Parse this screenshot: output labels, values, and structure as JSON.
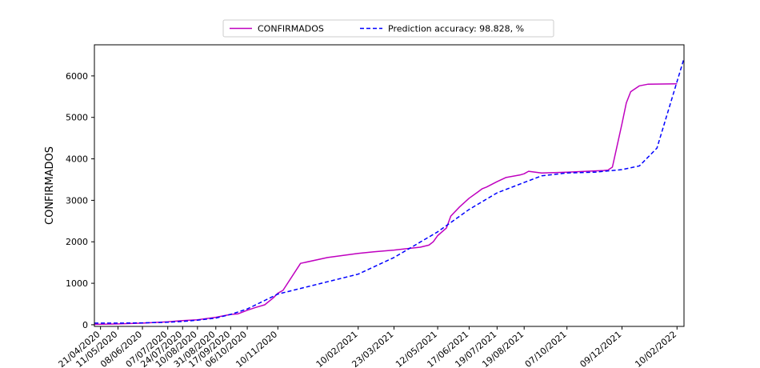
{
  "chart_data": {
    "type": "line",
    "title": "",
    "xlabel": "",
    "ylabel": "CONFIRMADOS",
    "ylim": [
      -40,
      6750
    ],
    "xlim": [
      "2020-04-14",
      "2022-02-18"
    ],
    "grid": false,
    "legend_position": "top-center",
    "x_tick_labels": [
      "21/04/2020",
      "11/05/2020",
      "08/06/2020",
      "07/07/2020",
      "24/07/2020",
      "10/08/2020",
      "31/08/2020",
      "17/09/2020",
      "06/10/2020",
      "10/11/2020",
      "10/02/2021",
      "23/03/2021",
      "12/05/2021",
      "17/06/2021",
      "19/07/2021",
      "19/08/2021",
      "07/10/2021",
      "09/12/2021",
      "10/02/2022"
    ],
    "y_ticks": [
      0,
      1000,
      2000,
      3000,
      4000,
      5000,
      6000
    ],
    "series": [
      {
        "name": "CONFIRMADOS",
        "color": "#bf00bf",
        "style": "solid",
        "x": [
          "2020-04-14",
          "2020-05-11",
          "2020-06-08",
          "2020-07-07",
          "2020-07-24",
          "2020-08-10",
          "2020-08-31",
          "2020-09-17",
          "2020-09-25",
          "2020-10-06",
          "2020-10-16",
          "2020-10-26",
          "2020-11-05",
          "2020-11-10",
          "2020-11-16",
          "2020-12-06",
          "2021-01-06",
          "2021-02-10",
          "2021-02-28",
          "2021-03-23",
          "2021-04-22",
          "2021-05-02",
          "2021-05-07",
          "2021-05-12",
          "2021-05-22",
          "2021-05-27",
          "2021-06-06",
          "2021-06-17",
          "2021-06-27",
          "2021-07-02",
          "2021-07-07",
          "2021-07-19",
          "2021-07-29",
          "2021-08-14",
          "2021-08-19",
          "2021-08-24",
          "2021-09-08",
          "2021-10-07",
          "2021-11-08",
          "2021-11-18",
          "2021-11-23",
          "2021-11-28",
          "2021-12-09",
          "2021-12-14",
          "2021-12-19",
          "2021-12-29",
          "2022-01-08",
          "2022-02-10"
        ],
        "values": [
          10,
          20,
          40,
          70,
          100,
          120,
          180,
          250,
          260,
          350,
          420,
          480,
          650,
          760,
          830,
          1480,
          1620,
          1720,
          1760,
          1800,
          1870,
          1920,
          2000,
          2150,
          2330,
          2620,
          2840,
          3050,
          3200,
          3280,
          3320,
          3450,
          3550,
          3610,
          3640,
          3700,
          3660,
          3680,
          3710,
          3720,
          3730,
          3800,
          4850,
          5350,
          5620,
          5760,
          5800,
          5810
        ]
      },
      {
        "name": "Prediction accuracy: 98.828, %",
        "color": "#0000ff",
        "style": "dashed",
        "x": [
          "2020-04-14",
          "2020-05-11",
          "2020-06-08",
          "2020-07-07",
          "2020-07-24",
          "2020-08-10",
          "2020-08-31",
          "2020-09-17",
          "2020-10-06",
          "2020-11-10",
          "2021-02-10",
          "2021-03-23",
          "2021-05-12",
          "2021-06-17",
          "2021-07-19",
          "2021-08-19",
          "2021-09-08",
          "2021-10-07",
          "2021-11-08",
          "2021-12-09",
          "2021-12-29",
          "2022-01-18",
          "2022-02-18"
        ],
        "values": [
          40,
          40,
          45,
          60,
          80,
          110,
          160,
          250,
          380,
          740,
          1220,
          1620,
          2240,
          2780,
          3180,
          3430,
          3590,
          3660,
          3680,
          3740,
          3830,
          4260,
          6420
        ]
      }
    ]
  }
}
